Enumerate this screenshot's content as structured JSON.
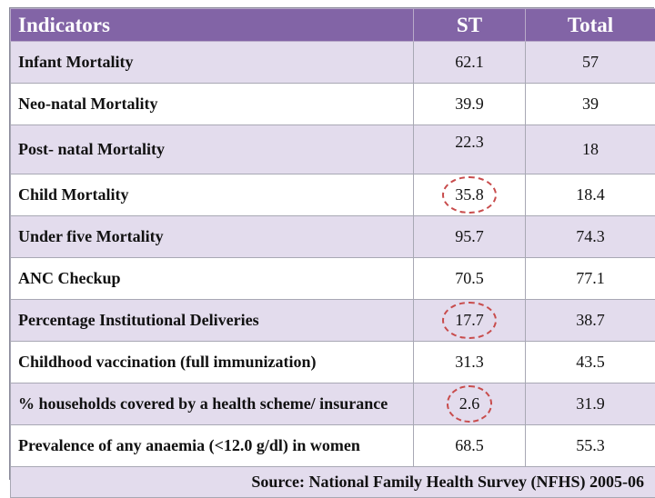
{
  "table": {
    "headers": {
      "indicators": "Indicators",
      "st": "ST",
      "total": "Total"
    },
    "rows": [
      {
        "indicator": "Infant Mortality",
        "st": "62.1",
        "total": "57"
      },
      {
        "indicator": "Neo-natal Mortality",
        "st": "39.9",
        "total": "39"
      },
      {
        "indicator": "Post- natal Mortality",
        "st": "22.3",
        "total": "18"
      },
      {
        "indicator": "Child Mortality",
        "st": "35.8",
        "total": "18.4"
      },
      {
        "indicator": "Under five Mortality",
        "st": "95.7",
        "total": "74.3"
      },
      {
        "indicator": "ANC Checkup",
        "st": "70.5",
        "total": "77.1"
      },
      {
        "indicator": "Percentage Institutional Deliveries",
        "st": "17.7",
        "total": "38.7"
      },
      {
        "indicator": "Childhood vaccination (full immunization)",
        "st": "31.3",
        "total": "43.5"
      },
      {
        "indicator": "% households covered by a health scheme/ insurance",
        "st": "2.6",
        "total": "31.9"
      },
      {
        "indicator": "Prevalence of any anaemia (<12.0 g/dl) in women",
        "st": "68.5",
        "total": "55.3"
      }
    ],
    "source": "Source: National Family Health Survey (NFHS) 2005-06"
  },
  "colors": {
    "header_bg": "#8264a6",
    "shaded_row": "#e3dced",
    "highlight_circle": "#c84c4c"
  }
}
